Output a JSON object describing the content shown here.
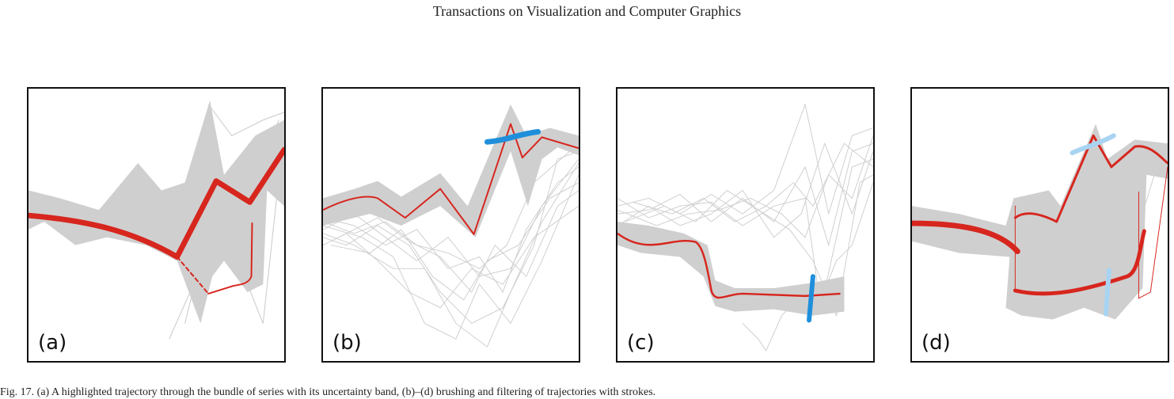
{
  "header": {
    "title": "Transactions on Visualization and Computer Graphics"
  },
  "panels": [
    {
      "label": "(a)"
    },
    {
      "label": "(b)"
    },
    {
      "label": "(c)"
    },
    {
      "label": "(d)"
    }
  ],
  "colors": {
    "band": "#cfcfcf",
    "context_lines": "#c8c8c8",
    "highlight": "#d7261e",
    "brush": "#1f8fdb",
    "brush_light": "#a8d4f2",
    "frame": "#111111"
  },
  "caption": {
    "text": "Fig. 17. (a) A highlighted trajectory through the bundle of series with its uncertainty band, (b)–(d) brushing and filtering of trajectories with strokes."
  }
}
